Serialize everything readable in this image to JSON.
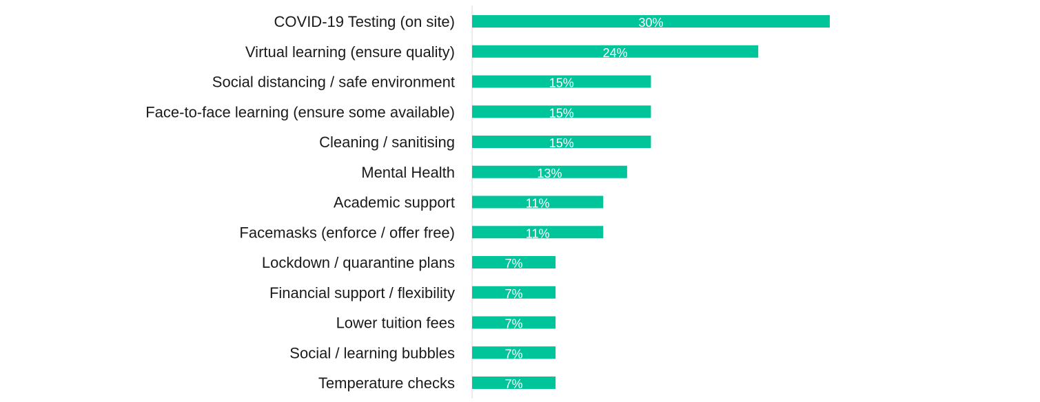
{
  "colors": {
    "bar": "#00c49a",
    "axis": "#d9d9d9",
    "label_text": "#1a1a1a",
    "data_label_text": "#ffffff"
  },
  "chart_data": {
    "type": "bar",
    "orientation": "horizontal",
    "title": "",
    "xlabel": "",
    "ylabel": "",
    "xlim": [
      0,
      50
    ],
    "grid": false,
    "legend": "none",
    "categories": [
      "COVID-19 Testing (on site)",
      "Virtual learning (ensure quality)",
      "Social distancing / safe environment",
      "Face-to-face learning (ensure some available)",
      "Cleaning / sanitising",
      "Mental Health",
      "Academic support",
      "Facemasks (enforce / offer free)",
      "Lockdown / quarantine plans",
      "Financial support / flexibility",
      "Lower tuition fees",
      "Social / learning bubbles",
      "Temperature checks"
    ],
    "values": [
      30,
      24,
      15,
      15,
      15,
      13,
      11,
      11,
      7,
      7,
      7,
      7,
      7
    ],
    "value_labels": [
      "30%",
      "24%",
      "15%",
      "15%",
      "15%",
      "13%",
      "11%",
      "11%",
      "7%",
      "7%",
      "7%",
      "7%",
      "7%"
    ]
  }
}
